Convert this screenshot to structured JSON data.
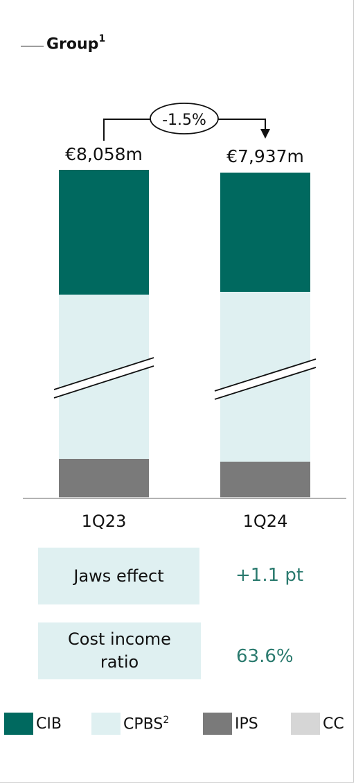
{
  "legend_title": {
    "label": "Group",
    "footnote": "1"
  },
  "change_label": "-1.5%",
  "chart_data": {
    "type": "bar",
    "stacked": true,
    "axis_break": true,
    "categories": [
      "1Q23",
      "1Q24"
    ],
    "totals": [
      "€8,058m",
      "€7,937m"
    ],
    "total_values": [
      8058,
      7937
    ],
    "series": [
      {
        "name": "CIB",
        "color": "#00695f"
      },
      {
        "name": "CPBS",
        "footnote": "2",
        "color": "#dff0f1"
      },
      {
        "name": "IPS",
        "color": "#7a7a7a"
      },
      {
        "name": "CC",
        "color": "#d6d6d6"
      }
    ]
  },
  "metrics": [
    {
      "label": "Jaws effect",
      "value": "+1.1 pt"
    },
    {
      "label": "Cost income ratio",
      "value": "63.6%"
    }
  ]
}
